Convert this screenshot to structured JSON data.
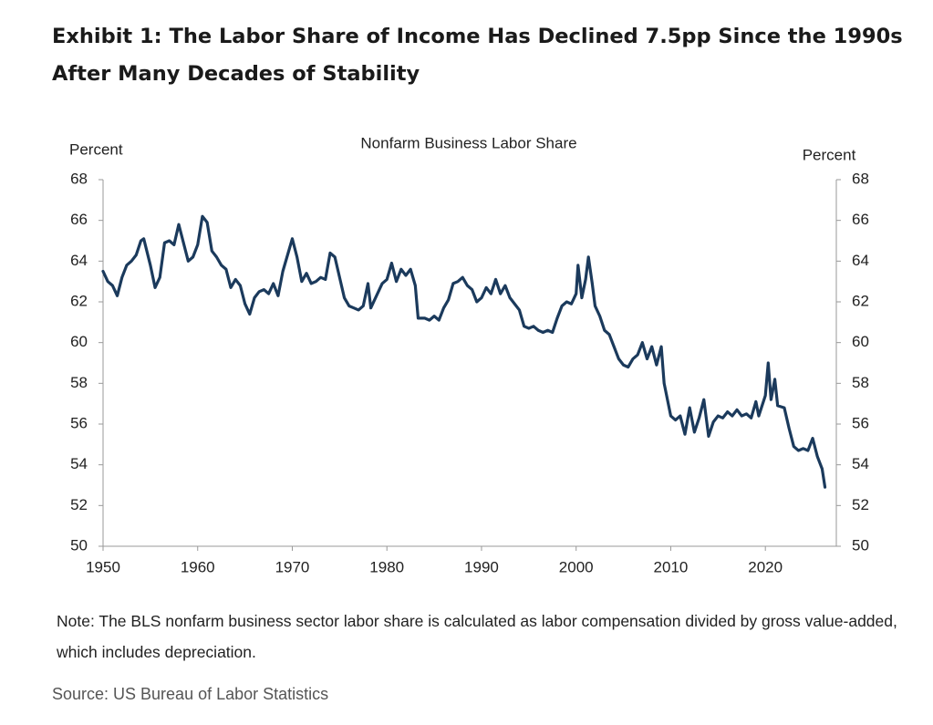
{
  "chart_data": {
    "type": "line",
    "title": "Exhibit 1: The Labor Share of Income Has Declined 7.5pp Since the 1990s After Many Decades of Stability",
    "subtitle": "Nonfarm  Business Labor Share",
    "ylabel": "Percent",
    "y2label": "Percent",
    "note": "Note: The BLS nonfarm business sector labor share is calculated as labor compensation divided by gross value-added, which includes depreciation.",
    "source": "Source: US Bureau of Labor Statistics",
    "xlim": [
      1950,
      2027.5
    ],
    "xticks": [
      1950,
      1960,
      1970,
      1980,
      1990,
      2000,
      2010,
      2020
    ],
    "ylim": [
      50,
      68
    ],
    "yticks": [
      50,
      52,
      54,
      56,
      58,
      60,
      62,
      64,
      66,
      68
    ],
    "y2lim": [
      50,
      68
    ],
    "y2ticks": [
      50,
      52,
      54,
      56,
      58,
      60,
      62,
      64,
      66,
      68
    ],
    "x": [
      1950,
      1950.5,
      1951,
      1951.5,
      1952,
      1952.5,
      1953,
      1953.5,
      1954,
      1954.3,
      1955,
      1955.5,
      1956,
      1956.5,
      1957,
      1957.5,
      1958,
      1958.5,
      1959,
      1959.5,
      1960,
      1960.5,
      1961,
      1961.5,
      1962,
      1962.5,
      1963,
      1963.5,
      1964,
      1964.5,
      1965,
      1965.5,
      1966,
      1966.5,
      1967,
      1967.5,
      1968,
      1968.5,
      1969,
      1969.5,
      1970,
      1970.5,
      1971,
      1971.5,
      1972,
      1972.5,
      1973,
      1973.5,
      1974,
      1974.5,
      1975,
      1975.5,
      1976,
      1976.5,
      1977,
      1977.5,
      1978,
      1978.3,
      1979,
      1979.5,
      1980,
      1980.5,
      1981,
      1981.5,
      1982,
      1982.5,
      1983,
      1983.3,
      1984,
      1984.5,
      1985,
      1985.5,
      1986,
      1986.5,
      1987,
      1987.5,
      1988,
      1988.5,
      1989,
      1989.5,
      1990,
      1990.5,
      1991,
      1991.5,
      1992,
      1992.5,
      1993,
      1993.5,
      1994,
      1994.5,
      1995,
      1995.5,
      1996,
      1996.5,
      1997,
      1997.5,
      1998,
      1998.5,
      1999,
      1999.5,
      2000,
      2000.2,
      2000.6,
      2001,
      2001.3,
      2001.7,
      2002,
      2002.5,
      2003,
      2003.5,
      2004,
      2004.5,
      2005,
      2005.5,
      2006,
      2006.5,
      2007,
      2007.5,
      2008,
      2008.5,
      2009,
      2009.3,
      2010,
      2010.5,
      2011,
      2011.5,
      2012,
      2012.5,
      2013,
      2013.5,
      2014,
      2014.5,
      2015,
      2015.5,
      2016,
      2016.5,
      2017,
      2017.5,
      2018,
      2018.5,
      2019,
      2019.3,
      2020,
      2020.3,
      2020.6,
      2021,
      2021.3,
      2022,
      2022.5,
      2023,
      2023.5,
      2024,
      2024.5,
      2025,
      2025.5,
      2026,
      2026.3
    ],
    "series": [
      {
        "name": "Nonfarm Business Labor Share",
        "color": "#1b3a5c",
        "values": [
          63.5,
          63.0,
          62.8,
          62.3,
          63.2,
          63.8,
          64.0,
          64.3,
          65.0,
          65.1,
          63.8,
          62.7,
          63.2,
          64.9,
          65.0,
          64.8,
          65.8,
          64.9,
          64.0,
          64.2,
          64.8,
          66.2,
          65.9,
          64.5,
          64.2,
          63.8,
          63.6,
          62.7,
          63.1,
          62.8,
          61.9,
          61.4,
          62.2,
          62.5,
          62.6,
          62.4,
          62.9,
          62.3,
          63.5,
          64.3,
          65.1,
          64.2,
          63.0,
          63.4,
          62.9,
          63.0,
          63.2,
          63.1,
          64.4,
          64.2,
          63.2,
          62.2,
          61.8,
          61.7,
          61.6,
          61.8,
          62.9,
          61.7,
          62.4,
          62.9,
          63.1,
          63.9,
          63.0,
          63.6,
          63.3,
          63.6,
          62.8,
          61.2,
          61.2,
          61.1,
          61.3,
          61.1,
          61.7,
          62.1,
          62.9,
          63.0,
          63.2,
          62.8,
          62.6,
          62.0,
          62.2,
          62.7,
          62.4,
          63.1,
          62.4,
          62.8,
          62.2,
          61.9,
          61.6,
          60.8,
          60.7,
          60.8,
          60.6,
          60.5,
          60.6,
          60.5,
          61.2,
          61.8,
          62.0,
          61.9,
          62.4,
          63.8,
          62.2,
          63.1,
          64.2,
          62.9,
          61.8,
          61.3,
          60.6,
          60.4,
          59.8,
          59.2,
          58.9,
          58.8,
          59.2,
          59.4,
          60.0,
          59.2,
          59.8,
          58.9,
          59.8,
          58.0,
          56.4,
          56.2,
          56.4,
          55.5,
          56.8,
          55.6,
          56.3,
          57.2,
          55.4,
          56.1,
          56.4,
          56.3,
          56.6,
          56.4,
          56.7,
          56.4,
          56.5,
          56.3,
          57.1,
          56.4,
          57.4,
          59.0,
          57.2,
          58.2,
          56.9,
          56.8,
          55.8,
          54.9,
          54.7,
          54.8,
          54.7,
          55.3,
          54.4,
          53.8,
          52.9
        ]
      }
    ]
  }
}
